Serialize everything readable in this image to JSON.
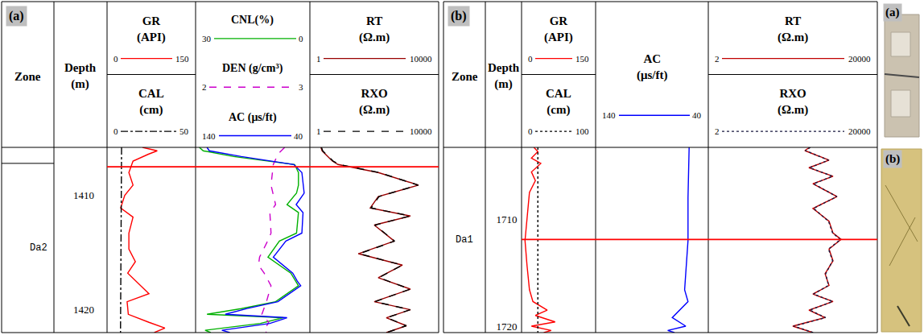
{
  "chart_data": [
    {
      "type": "line",
      "label": "(a)",
      "zone_title": "Zone",
      "depth_title": "Depth (m)",
      "ylim": [
        1405.8,
        1422.0
      ],
      "yticks": [
        1410,
        1420
      ],
      "zones": [
        {
          "name": "Da2",
          "top": 1407.2
        }
      ],
      "horizon": {
        "depth": 1407.5,
        "color": "#ff0000"
      },
      "tracks": [
        {
          "curves": [
            {
              "title": "GR (API)",
              "color": "#ff0000",
              "line_style": "solid",
              "xlim": [
                0,
                150
              ],
              "depth": [
                1405.8,
                1406.1,
                1406.4,
                1407.0,
                1408.0,
                1409.1,
                1410.0,
                1411.1,
                1411.9,
                1413.3,
                1414.7,
                1415.8,
                1416.8,
                1417.9,
                1418.6,
                1419.3,
                1420.4,
                1421.1,
                1421.6,
                1422.0
              ],
              "values": [
                60,
                85,
                70,
                44,
                37,
                44,
                30,
                23,
                44,
                37,
                37,
                48,
                35,
                57,
                71,
                34,
                36,
                71,
                98,
                80
              ]
            },
            {
              "title": "CAL (cm)",
              "color": "#000000",
              "line_style": "dashdot",
              "xlim": [
                0,
                50
              ],
              "depth": [
                1405.8,
                1410.0,
                1415.0,
                1422.0
              ],
              "values": [
                8.2,
                8.0,
                7.8,
                7.6
              ]
            }
          ]
        },
        {
          "curves": [
            {
              "title": "CNL(%)",
              "color": "#00b000",
              "line_style": "solid",
              "xlim": [
                30,
                0
              ],
              "depth": [
                1405.8,
                1406.1,
                1406.6,
                1407.3,
                1408.0,
                1409.1,
                1409.8,
                1410.8,
                1411.5,
                1413.3,
                1414.0,
                1415.4,
                1416.8,
                1417.9,
                1419.3,
                1419.9,
                1420.4,
                1420.7,
                1421.2,
                1421.8,
                1422.0
              ],
              "values": [
                29,
                28,
                20,
                4,
                3,
                3,
                3.5,
                6,
                3,
                3.5,
                8,
                11,
                5,
                3,
                9,
                18,
                27,
                7,
                13,
                27.5,
                26
              ]
            },
            {
              "title": "DEN (g/cm³)",
              "color": "#cc00cc",
              "line_style": "dash",
              "xlim": [
                2,
                3
              ],
              "depth": [
                1405.8,
                1406.4,
                1407.3,
                1409.1,
                1410.8,
                1411.5,
                1413.3,
                1414.0,
                1415.4,
                1416.1,
                1416.8,
                1417.9,
                1419.3,
                1420.4,
                1421.1,
                1421.8,
                1422.0
              ],
              "values": [
                2.78,
                2.72,
                2.68,
                2.66,
                2.7,
                2.65,
                2.66,
                2.63,
                2.56,
                2.55,
                2.6,
                2.66,
                2.62,
                2.58,
                2.64,
                2.6,
                2.62
              ]
            },
            {
              "title": "AC (μs/ft)",
              "color": "#0000ff",
              "line_style": "solid",
              "xlim": [
                140,
                40
              ],
              "depth": [
                1405.8,
                1406.1,
                1406.6,
                1407.3,
                1408.0,
                1409.8,
                1410.8,
                1411.5,
                1413.3,
                1414.0,
                1415.4,
                1416.8,
                1417.5,
                1417.9,
                1419.3,
                1419.9,
                1420.4,
                1420.7,
                1421.2,
                1421.8,
                1422.0
              ],
              "values": [
                130,
                128,
                100,
                54,
                47,
                45,
                52,
                46,
                47,
                61,
                72,
                55,
                51,
                48,
                68,
                95,
                114,
                60,
                75,
                117,
                110
              ]
            }
          ]
        },
        {
          "curves": [
            {
              "title": "RT (Ω.m)",
              "color": "#990000",
              "line_style": "solid",
              "log": "x",
              "xlim": [
                1,
                10000
              ],
              "depth": [
                1405.8,
                1406.1,
                1407.0,
                1407.3,
                1408.0,
                1409.1,
                1410.1,
                1411.1,
                1411.8,
                1412.6,
                1414.0,
                1415.1,
                1416.1,
                1417.2,
                1418.2,
                1419.3,
                1420.0,
                1420.7,
                1421.4,
                1422.0
              ],
              "values": [
                2.2,
                2.4,
                5,
                7.5,
                133,
                2370,
                133,
                75,
                1330,
                100,
                420,
                32,
                750,
                133,
                1330,
                100,
                1330,
                237,
                1000,
                237
              ]
            },
            {
              "title": "RXO (Ω.m)",
              "color": "#000000",
              "line_style": "dash",
              "log": "x",
              "xlim": [
                1,
                10000
              ],
              "depth": [
                1405.8,
                1406.1,
                1407.0,
                1407.3,
                1408.0,
                1409.1,
                1410.1,
                1411.1,
                1411.8,
                1412.6,
                1414.0,
                1415.1,
                1416.1,
                1417.2,
                1418.2,
                1419.3,
                1420.0,
                1420.7,
                1421.4,
                1422.0
              ],
              "values": [
                2.3,
                2.5,
                5.3,
                8,
                140,
                2300,
                140,
                80,
                1300,
                105,
                430,
                34,
                740,
                140,
                1300,
                105,
                1300,
                245,
                980,
                245
              ]
            }
          ]
        }
      ]
    },
    {
      "type": "line",
      "label": "(b)",
      "zone_title": "Zone",
      "depth_title": "Depth (m)",
      "ylim": [
        1703.3,
        1720.6
      ],
      "yticks": [
        1710,
        1720
      ],
      "zones": [
        {
          "name": "Da1",
          "top": 1703.3
        }
      ],
      "horizon": {
        "depth": 1711.9,
        "color": "#ff0000"
      },
      "tracks": [
        {
          "curves": [
            {
              "title": "GR (API)",
              "color": "#ff0000",
              "line_style": "solid",
              "xlim": [
                0,
                150
              ],
              "depth": [
                1703.3,
                1703.7,
                1704.3,
                1704.8,
                1705.6,
                1706.4,
                1707.5,
                1709.0,
                1710.5,
                1712.0,
                1714.3,
                1716.6,
                1717.7,
                1718.5,
                1719.0,
                1719.6,
                1720.0,
                1720.4,
                1720.6
              ],
              "values": [
                25,
                33,
                20,
                39,
                20,
                28,
                16,
                13,
                11,
                7,
                11,
                16,
                23,
                52,
                28,
                68,
                20,
                60,
                45
              ]
            },
            {
              "title": "CAL (cm)",
              "color": "#000000",
              "line_style": "dot",
              "xlim": [
                0,
                100
              ],
              "depth": [
                1703.3,
                1712.0,
                1720.6
              ],
              "values": [
                22,
                22,
                22
              ]
            }
          ]
        },
        {
          "curves": [
            {
              "title": "AC (μs/ft)",
              "color": "#0000ff",
              "line_style": "solid",
              "xlim": [
                140,
                40
              ],
              "depth": [
                1703.3,
                1708.0,
                1712.0,
                1716.6,
                1717.7,
                1719.2,
                1720.0,
                1720.4,
                1720.6
              ],
              "values": [
                57,
                58,
                58,
                61,
                58,
                72,
                60,
                76,
                70
              ]
            }
          ]
        },
        {
          "curves": [
            {
              "title": "RT (Ω.m)",
              "color": "#c00000",
              "line_style": "solid",
              "log": "x",
              "xlim": [
                2,
                20000
              ],
              "depth": [
                1703.3,
                1703.6,
                1704.5,
                1705.2,
                1706.0,
                1706.7,
                1707.9,
                1709.0,
                1710.2,
                1711.3,
                1711.9,
                1712.8,
                1713.9,
                1715.1,
                1716.2,
                1717.0,
                1717.7,
                1718.5,
                1719.2,
                1720.0,
                1720.6
              ],
              "values": [
                500,
                386,
                1440,
                481,
                1790,
                598,
                2230,
                598,
                1440,
                1790,
                2780,
                1440,
                1790,
                1160,
                1440,
                598,
                1790,
                481,
                1160,
                200,
                598
              ]
            },
            {
              "title": "RXO (Ω.m)",
              "color": "#1a1a40",
              "line_style": "dot",
              "log": "x",
              "xlim": [
                2,
                20000
              ],
              "depth": [
                1703.3,
                1703.6,
                1704.5,
                1705.2,
                1706.0,
                1706.7,
                1707.9,
                1709.0,
                1710.2,
                1711.3,
                1711.9,
                1712.8,
                1713.9,
                1715.1,
                1716.2,
                1717.0,
                1717.7,
                1718.5,
                1719.2,
                1720.0,
                1720.6
              ],
              "values": [
                520,
                400,
                1400,
                500,
                1750,
                620,
                2200,
                620,
                1400,
                1750,
                2700,
                1400,
                1750,
                1200,
                1400,
                620,
                1750,
                500,
                1200,
                210,
                620
              ]
            }
          ]
        }
      ]
    }
  ],
  "images": [
    {
      "label": "(a)"
    },
    {
      "label": "(b)"
    }
  ]
}
